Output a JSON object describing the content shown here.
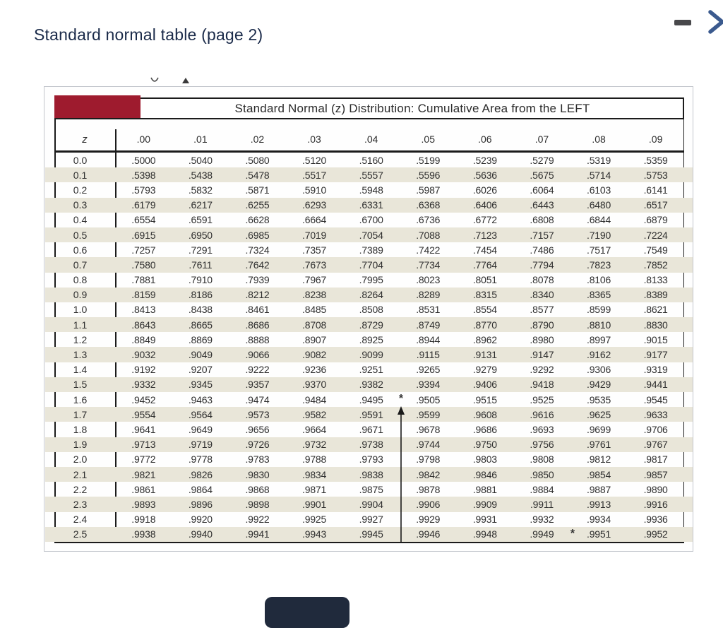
{
  "window": {
    "title": "Standard normal table (page 2)"
  },
  "colors": {
    "header_red": "#9e1b2e",
    "row_stripe": "#e9e6d9",
    "title_navy": "#1b2b4a",
    "chevron_blue": "#3b5a8e",
    "button_navy": "#202a3c",
    "table_line": "#1b1b1b"
  },
  "table": {
    "caption": "Standard Normal (z) Distribution: Cumulative Area from the LEFT",
    "columns": [
      "z",
      ".00",
      ".01",
      ".02",
      ".03",
      ".04",
      ".05",
      ".06",
      ".07",
      ".08",
      ".09"
    ],
    "rows": [
      [
        "0.0",
        ".5000",
        ".5040",
        ".5080",
        ".5120",
        ".5160",
        ".5199",
        ".5239",
        ".5279",
        ".5319",
        ".5359"
      ],
      [
        "0.1",
        ".5398",
        ".5438",
        ".5478",
        ".5517",
        ".5557",
        ".5596",
        ".5636",
        ".5675",
        ".5714",
        ".5753"
      ],
      [
        "0.2",
        ".5793",
        ".5832",
        ".5871",
        ".5910",
        ".5948",
        ".5987",
        ".6026",
        ".6064",
        ".6103",
        ".6141"
      ],
      [
        "0.3",
        ".6179",
        ".6217",
        ".6255",
        ".6293",
        ".6331",
        ".6368",
        ".6406",
        ".6443",
        ".6480",
        ".6517"
      ],
      [
        "0.4",
        ".6554",
        ".6591",
        ".6628",
        ".6664",
        ".6700",
        ".6736",
        ".6772",
        ".6808",
        ".6844",
        ".6879"
      ],
      [
        "0.5",
        ".6915",
        ".6950",
        ".6985",
        ".7019",
        ".7054",
        ".7088",
        ".7123",
        ".7157",
        ".7190",
        ".7224"
      ],
      [
        "0.6",
        ".7257",
        ".7291",
        ".7324",
        ".7357",
        ".7389",
        ".7422",
        ".7454",
        ".7486",
        ".7517",
        ".7549"
      ],
      [
        "0.7",
        ".7580",
        ".7611",
        ".7642",
        ".7673",
        ".7704",
        ".7734",
        ".7764",
        ".7794",
        ".7823",
        ".7852"
      ],
      [
        "0.8",
        ".7881",
        ".7910",
        ".7939",
        ".7967",
        ".7995",
        ".8023",
        ".8051",
        ".8078",
        ".8106",
        ".8133"
      ],
      [
        "0.9",
        ".8159",
        ".8186",
        ".8212",
        ".8238",
        ".8264",
        ".8289",
        ".8315",
        ".8340",
        ".8365",
        ".8389"
      ],
      [
        "1.0",
        ".8413",
        ".8438",
        ".8461",
        ".8485",
        ".8508",
        ".8531",
        ".8554",
        ".8577",
        ".8599",
        ".8621"
      ],
      [
        "1.1",
        ".8643",
        ".8665",
        ".8686",
        ".8708",
        ".8729",
        ".8749",
        ".8770",
        ".8790",
        ".8810",
        ".8830"
      ],
      [
        "1.2",
        ".8849",
        ".8869",
        ".8888",
        ".8907",
        ".8925",
        ".8944",
        ".8962",
        ".8980",
        ".8997",
        ".9015"
      ],
      [
        "1.3",
        ".9032",
        ".9049",
        ".9066",
        ".9082",
        ".9099",
        ".9115",
        ".9131",
        ".9147",
        ".9162",
        ".9177"
      ],
      [
        "1.4",
        ".9192",
        ".9207",
        ".9222",
        ".9236",
        ".9251",
        ".9265",
        ".9279",
        ".9292",
        ".9306",
        ".9319"
      ],
      [
        "1.5",
        ".9332",
        ".9345",
        ".9357",
        ".9370",
        ".9382",
        ".9394",
        ".9406",
        ".9418",
        ".9429",
        ".9441"
      ],
      [
        "1.6",
        ".9452",
        ".9463",
        ".9474",
        ".9484",
        ".9495",
        ".9505",
        ".9515",
        ".9525",
        ".9535",
        ".9545"
      ],
      [
        "1.7",
        ".9554",
        ".9564",
        ".9573",
        ".9582",
        ".9591",
        ".9599",
        ".9608",
        ".9616",
        ".9625",
        ".9633"
      ],
      [
        "1.8",
        ".9641",
        ".9649",
        ".9656",
        ".9664",
        ".9671",
        ".9678",
        ".9686",
        ".9693",
        ".9699",
        ".9706"
      ],
      [
        "1.9",
        ".9713",
        ".9719",
        ".9726",
        ".9732",
        ".9738",
        ".9744",
        ".9750",
        ".9756",
        ".9761",
        ".9767"
      ],
      [
        "2.0",
        ".9772",
        ".9778",
        ".9783",
        ".9788",
        ".9793",
        ".9798",
        ".9803",
        ".9808",
        ".9812",
        ".9817"
      ],
      [
        "2.1",
        ".9821",
        ".9826",
        ".9830",
        ".9834",
        ".9838",
        ".9842",
        ".9846",
        ".9850",
        ".9854",
        ".9857"
      ],
      [
        "2.2",
        ".9861",
        ".9864",
        ".9868",
        ".9871",
        ".9875",
        ".9878",
        ".9881",
        ".9884",
        ".9887",
        ".9890"
      ],
      [
        "2.3",
        ".9893",
        ".9896",
        ".9898",
        ".9901",
        ".9904",
        ".9906",
        ".9909",
        ".9911",
        ".9913",
        ".9916"
      ],
      [
        "2.4",
        ".9918",
        ".9920",
        ".9922",
        ".9925",
        ".9927",
        ".9929",
        ".9931",
        ".9932",
        ".9934",
        ".9936"
      ],
      [
        "2.5",
        ".9938",
        ".9940",
        ".9941",
        ".9943",
        ".9945",
        ".9946",
        ".9948",
        ".9949",
        ".9951",
        ".9952"
      ]
    ],
    "annotations": {
      "marker_row_1_6": "*",
      "marker_row_2_5": "*"
    }
  }
}
